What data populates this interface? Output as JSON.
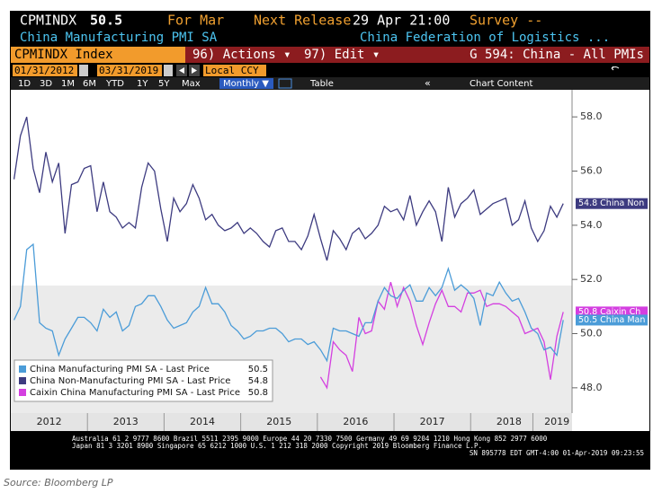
{
  "terminal": {
    "ticker": "CPMINDX",
    "price": "50.5",
    "period": "For Mar",
    "next_release_label": "Next Release",
    "next_release": "29 Apr 21:00",
    "survey": "Survey --",
    "name": "China Manufacturing PMI SA",
    "source_org": "China Federation of Logistics ...",
    "security": "CPMINDX Index",
    "actions": "96) Actions ▾",
    "edit": "97) Edit ▾",
    "group": "G 594: China - All PMIs",
    "start_date": "01/31/2012",
    "end_date": "03/31/2019",
    "currency": "Local CCY",
    "toolbar": [
      "1D",
      "3D",
      "1M",
      "6M",
      "YTD",
      "1Y",
      "5Y",
      "Max"
    ],
    "frequency": "Monthly ▼",
    "table": "Table",
    "back": "«",
    "chart_content": "Chart Content",
    "footer": [
      "Australia 61 2 9777 8600 Brazil 5511 2395 9000 Europe 44 20 7330 7500 Germany 49 69 9204 1210 Hong Kong 852 2977 6000",
      "Japan 81 3 3201 8900          Singapore 65 6212 1000          U.S. 1 212 318 2000          Copyright 2019 Bloomberg Finance L.P.",
      "SN 895778 EDT  GMT-4:00 01-Apr-2019 09:23:55"
    ],
    "caption": "Source: Bloomberg LP"
  },
  "chart_data": {
    "type": "line",
    "x": [
      2012.042,
      2012.125,
      2012.208,
      2012.292,
      2012.375,
      2012.458,
      2012.542,
      2012.625,
      2012.708,
      2012.792,
      2012.875,
      2012.958,
      2013.042,
      2013.125,
      2013.208,
      2013.292,
      2013.375,
      2013.458,
      2013.542,
      2013.625,
      2013.708,
      2013.792,
      2013.875,
      2013.958,
      2014.042,
      2014.125,
      2014.208,
      2014.292,
      2014.375,
      2014.458,
      2014.542,
      2014.625,
      2014.708,
      2014.792,
      2014.875,
      2014.958,
      2015.042,
      2015.125,
      2015.208,
      2015.292,
      2015.375,
      2015.458,
      2015.542,
      2015.625,
      2015.708,
      2015.792,
      2015.875,
      2015.958,
      2016.042,
      2016.125,
      2016.208,
      2016.292,
      2016.375,
      2016.458,
      2016.542,
      2016.625,
      2016.708,
      2016.792,
      2016.875,
      2016.958,
      2017.042,
      2017.125,
      2017.208,
      2017.292,
      2017.375,
      2017.458,
      2017.542,
      2017.625,
      2017.708,
      2017.792,
      2017.875,
      2017.958,
      2018.042,
      2018.125,
      2018.208,
      2018.292,
      2018.375,
      2018.458,
      2018.542,
      2018.625,
      2018.708,
      2018.792,
      2018.875,
      2018.958,
      2019.042,
      2019.125,
      2019.208
    ],
    "series": [
      {
        "name": "China Manufacturing PMI SA - Last Price",
        "tag": "50.5 China Man",
        "color": "#4b9cd8",
        "values": [
          50.5,
          51.0,
          53.1,
          53.3,
          50.4,
          50.2,
          50.1,
          49.2,
          49.8,
          50.2,
          50.6,
          50.6,
          50.4,
          50.1,
          50.9,
          50.6,
          50.8,
          50.1,
          50.3,
          51.0,
          51.1,
          51.4,
          51.4,
          51.0,
          50.5,
          50.2,
          50.3,
          50.4,
          50.8,
          51.0,
          51.7,
          51.1,
          51.1,
          50.8,
          50.3,
          50.1,
          49.8,
          49.9,
          50.1,
          50.1,
          50.2,
          50.2,
          50.0,
          49.7,
          49.8,
          49.8,
          49.6,
          49.7,
          49.4,
          49.0,
          50.2,
          50.1,
          50.1,
          50.0,
          49.9,
          50.4,
          50.4,
          51.2,
          51.7,
          51.4,
          51.3,
          51.6,
          51.8,
          51.2,
          51.2,
          51.7,
          51.4,
          51.7,
          52.4,
          51.6,
          51.8,
          51.6,
          51.3,
          50.3,
          51.5,
          51.4,
          51.9,
          51.5,
          51.2,
          51.3,
          50.8,
          50.2,
          50.0,
          49.4,
          49.5,
          49.2,
          50.5
        ]
      },
      {
        "name": "China Non-Manufacturing PMI SA - Last Price",
        "tag": "54.8 China Non",
        "color": "#3d3b80",
        "values": [
          55.7,
          57.3,
          58.0,
          56.1,
          55.2,
          56.7,
          55.6,
          56.3,
          53.7,
          55.5,
          55.6,
          56.1,
          56.2,
          54.5,
          55.6,
          54.5,
          54.3,
          53.9,
          54.1,
          53.9,
          55.4,
          56.3,
          56.0,
          54.6,
          53.4,
          55.0,
          54.5,
          54.8,
          55.5,
          55.0,
          54.2,
          54.4,
          54.0,
          53.8,
          53.9,
          54.1,
          53.7,
          53.9,
          53.7,
          53.4,
          53.2,
          53.8,
          53.9,
          53.4,
          53.4,
          53.1,
          53.6,
          54.4,
          53.5,
          52.7,
          53.8,
          53.5,
          53.1,
          53.7,
          53.9,
          53.5,
          53.7,
          54.0,
          54.7,
          54.5,
          54.6,
          54.2,
          55.1,
          54.0,
          54.5,
          54.9,
          54.5,
          53.4,
          55.4,
          54.3,
          54.8,
          55.0,
          55.3,
          54.4,
          54.6,
          54.8,
          54.9,
          55.0,
          54.0,
          54.2,
          54.9,
          53.9,
          53.4,
          53.8,
          54.7,
          54.3,
          54.8
        ]
      },
      {
        "name": "Caixin China Manufacturing PMI SA - Last Price",
        "tag": "50.8 Caixin Ch",
        "color": "#d43fe0",
        "values": [
          null,
          null,
          null,
          null,
          null,
          null,
          null,
          null,
          null,
          null,
          null,
          null,
          null,
          null,
          null,
          null,
          null,
          null,
          null,
          null,
          null,
          null,
          null,
          null,
          null,
          null,
          null,
          null,
          null,
          null,
          null,
          null,
          null,
          null,
          null,
          null,
          null,
          null,
          null,
          null,
          null,
          null,
          null,
          null,
          null,
          null,
          null,
          null,
          48.4,
          48.0,
          49.7,
          49.4,
          49.2,
          48.6,
          50.6,
          50.0,
          50.1,
          51.2,
          50.9,
          51.9,
          51.0,
          51.7,
          51.2,
          50.3,
          49.6,
          50.4,
          51.1,
          51.6,
          51.0,
          51.0,
          50.8,
          51.5,
          51.5,
          51.6,
          51.0,
          51.1,
          51.1,
          51.0,
          50.8,
          50.6,
          50.0,
          50.1,
          50.2,
          49.7,
          48.3,
          49.9,
          50.8
        ]
      }
    ],
    "xlim": [
      2012,
      2019.3
    ],
    "xticks": [
      {
        "value": 2012.5,
        "label": "2012"
      },
      {
        "value": 2013.5,
        "label": "2013"
      },
      {
        "value": 2014.5,
        "label": "2014"
      },
      {
        "value": 2015.5,
        "label": "2015"
      },
      {
        "value": 2016.5,
        "label": "2016"
      },
      {
        "value": 2017.5,
        "label": "2017"
      },
      {
        "value": 2018.5,
        "label": "2018"
      },
      {
        "value": 2019.125,
        "label": "2019"
      }
    ],
    "ylim": [
      47.1,
      59.0
    ],
    "yticks": [
      {
        "value": 48,
        "label": "48.0"
      },
      {
        "value": 50,
        "label": "50.0"
      },
      {
        "value": 52,
        "label": "52.0"
      },
      {
        "value": 54,
        "label": "54.0"
      },
      {
        "value": 56,
        "label": "56.0"
      },
      {
        "value": 58,
        "label": "58.0"
      }
    ],
    "legend": "lower left",
    "grid": false
  }
}
